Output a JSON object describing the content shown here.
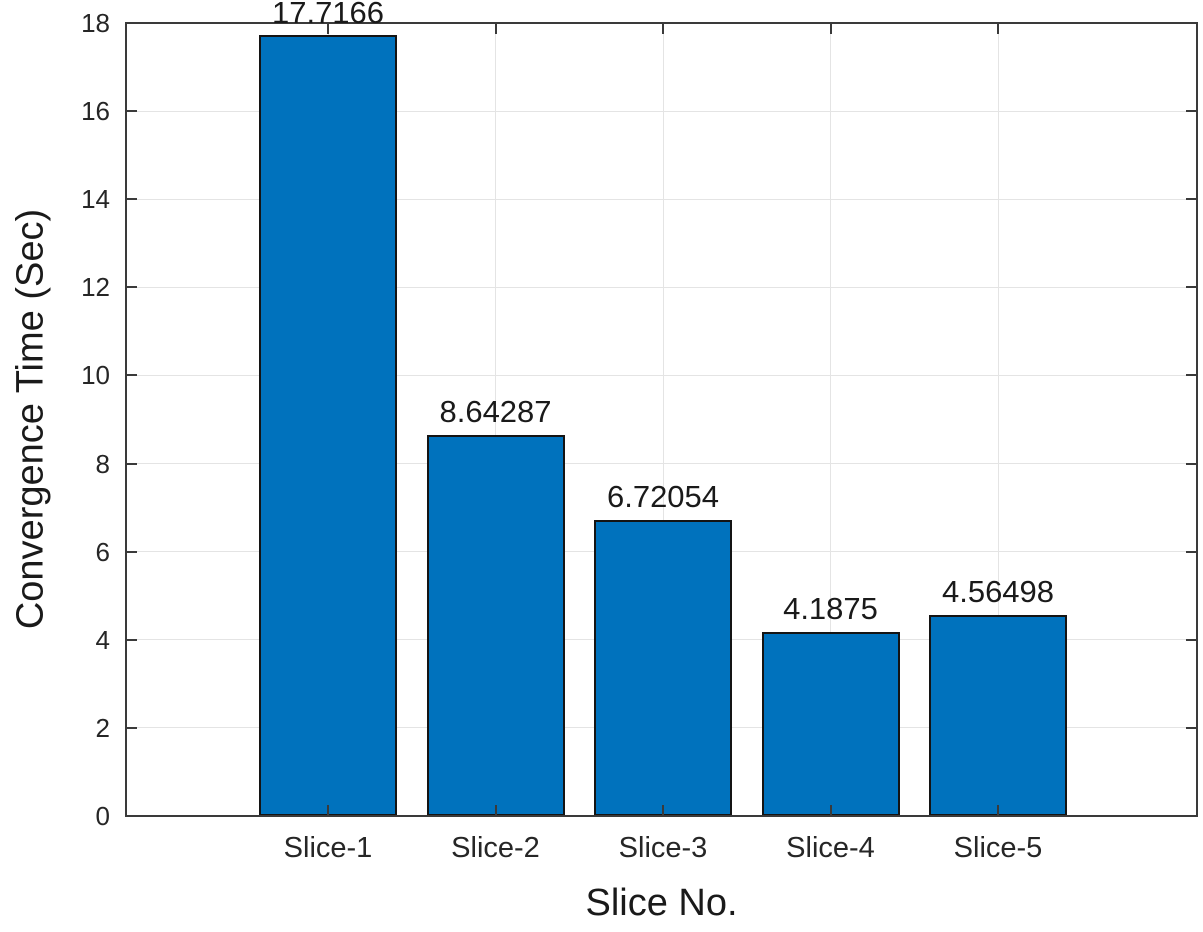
{
  "figure": {
    "background_color": "#ffffff"
  },
  "chart_data": {
    "type": "bar",
    "title": "",
    "xlabel": "Slice No.",
    "ylabel": "Convergence Time (Sec)",
    "categories": [
      "Slice-1",
      "Slice-2",
      "Slice-3",
      "Slice-4",
      "Slice-5"
    ],
    "values": [
      17.7166,
      8.64287,
      6.72054,
      4.1875,
      4.56498
    ],
    "value_labels": [
      "17.7166",
      "8.64287",
      "6.72054",
      "4.1875",
      "4.56498"
    ],
    "ylim": [
      0,
      18
    ],
    "yticks": [
      0,
      2,
      4,
      6,
      8,
      10,
      12,
      14,
      16,
      18
    ],
    "grid": true,
    "legend": "none",
    "bar_color": "#0072BD",
    "bar_edge_color": "#141414",
    "axis_color": "#3a3a3a",
    "grid_color": "#e4e4e4",
    "text_color": "#262626"
  }
}
